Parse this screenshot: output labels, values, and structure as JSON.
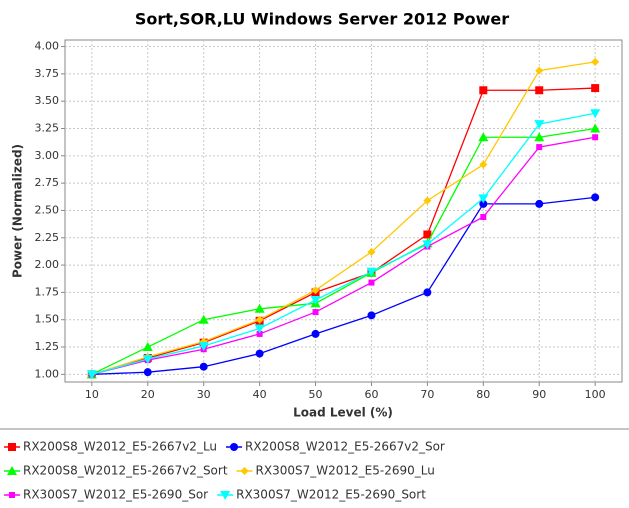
{
  "chart_data": {
    "type": "line",
    "title": "Sort,SOR,LU Windows Server 2012 Power",
    "x_label": "Load Level (%)",
    "y_label": "Power (Normalized)",
    "x": [
      10,
      20,
      30,
      40,
      50,
      60,
      70,
      80,
      90,
      100
    ],
    "xlim": [
      5.2,
      104.8
    ],
    "xticks": [
      10,
      20,
      30,
      40,
      50,
      60,
      70,
      80,
      90,
      100
    ],
    "ylim": [
      0.93,
      4.06
    ],
    "yticks": [
      {
        "value": 1,
        "label": "1.00"
      },
      {
        "value": 1.25,
        "label": "1.25"
      },
      {
        "value": 1.5,
        "label": "1.50"
      },
      {
        "value": 1.75,
        "label": "1.75"
      },
      {
        "value": 2,
        "label": "2.00"
      },
      {
        "value": 2.25,
        "label": "2.25"
      },
      {
        "value": 2.5,
        "label": "2.50"
      },
      {
        "value": 2.75,
        "label": "2.75"
      },
      {
        "value": 3,
        "label": "3.00"
      },
      {
        "value": 3.25,
        "label": "3.25"
      },
      {
        "value": 3.5,
        "label": "3.50"
      },
      {
        "value": 3.75,
        "label": "3.75"
      },
      {
        "value": 4,
        "label": "4.00"
      }
    ],
    "grid": true,
    "legend": "bottom",
    "series": [
      {
        "name": "RX200S8_W2012_E5-2667v2_Lu",
        "color": "#ff0000",
        "marker": "square",
        "values": [
          1.0,
          1.15,
          1.29,
          1.49,
          1.75,
          1.93,
          2.28,
          3.6,
          3.6,
          3.62
        ]
      },
      {
        "name": "RX200S8_W2012_E5-2667v2_Sor",
        "color": "#0000ff",
        "marker": "circle",
        "values": [
          1.0,
          1.02,
          1.07,
          1.19,
          1.37,
          1.54,
          1.75,
          2.56,
          2.56,
          2.62
        ]
      },
      {
        "name": "RX200S8_W2012_E5-2667v2_Sort",
        "color": "#00ff00",
        "marker": "triangle-up",
        "values": [
          1.0,
          1.25,
          1.5,
          1.6,
          1.65,
          1.93,
          2.2,
          3.17,
          3.17,
          3.25
        ]
      },
      {
        "name": "RX300S7_W2012_E5-2690_Lu",
        "color": "#ffc800",
        "marker": "diamond",
        "values": [
          1.0,
          1.16,
          1.3,
          1.5,
          1.77,
          2.12,
          2.59,
          2.92,
          3.78,
          3.86
        ]
      },
      {
        "name": "RX300S7_W2012_E5-2690_Sor",
        "color": "#ff00ff",
        "marker": "square-small",
        "values": [
          1.0,
          1.13,
          1.23,
          1.37,
          1.57,
          1.84,
          2.17,
          2.44,
          3.08,
          3.17
        ]
      },
      {
        "name": "RX300S7_W2012_E5-2690_Sort",
        "color": "#00ffff",
        "marker": "triangle-down",
        "values": [
          1.0,
          1.14,
          1.26,
          1.42,
          1.68,
          1.94,
          2.19,
          2.61,
          3.29,
          3.39
        ]
      }
    ]
  }
}
